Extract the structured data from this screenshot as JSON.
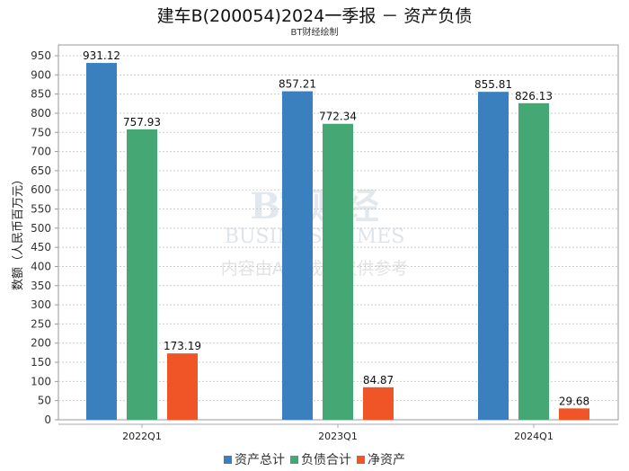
{
  "chart_data": {
    "type": "bar",
    "title": "建车B(200054)2024一季报 － 资产负债",
    "subtitle": "BT财经绘制",
    "xlabel": "",
    "ylabel": "数额（人民币百万元）",
    "ylim": [
      0,
      950
    ],
    "yticks": [
      0,
      50,
      100,
      150,
      200,
      250,
      300,
      350,
      400,
      450,
      500,
      550,
      600,
      650,
      700,
      750,
      800,
      850,
      900,
      950
    ],
    "grid": true,
    "legend_position": "bottom",
    "categories": [
      "2022Q1",
      "2023Q1",
      "2024Q1"
    ],
    "series": [
      {
        "name": "资产总计",
        "color": "#3a80be",
        "values": [
          931.12,
          857.21,
          855.81
        ]
      },
      {
        "name": "负债合计",
        "color": "#45a874",
        "values": [
          757.93,
          772.34,
          826.13
        ]
      },
      {
        "name": "净资产",
        "color": "#f05528",
        "values": [
          173.19,
          84.87,
          29.68
        ]
      }
    ]
  },
  "watermark": {
    "logo": "BT财经",
    "logo_en": "BUSINESSTIMES",
    "notice": "内容由AI生成，仅供参考"
  }
}
